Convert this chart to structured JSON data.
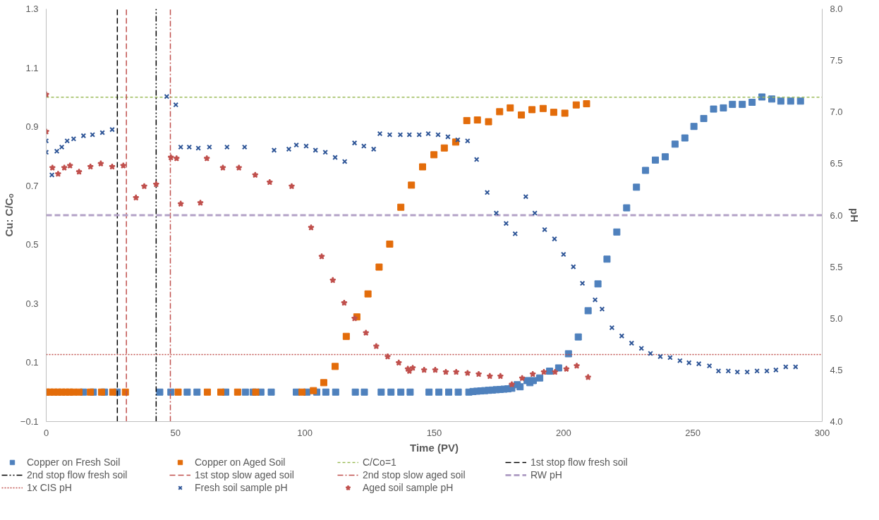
{
  "chart_data": {
    "type": "scatter",
    "xlabel": "Time (PV)",
    "ylabel": "Cu: C/Cₒ",
    "y2label": "pH",
    "xlim": [
      0,
      300
    ],
    "xticks": [
      0,
      50,
      100,
      150,
      200,
      250,
      300
    ],
    "ylim": [
      -0.1,
      1.3
    ],
    "yticks": [
      -0.1,
      0.1,
      0.3,
      0.5,
      0.7,
      0.9,
      1.1,
      1.3
    ],
    "y2lim": [
      4,
      8
    ],
    "y2ticks": [
      {
        "value": 4,
        "label": "4.0"
      },
      {
        "value": 4.5,
        "label": "4.5"
      },
      {
        "value": 5,
        "label": "5.0"
      },
      {
        "value": 5.5,
        "label": "5.5"
      },
      {
        "value": 6,
        "label": "6.0"
      },
      {
        "value": 6.5,
        "label": "6.5"
      },
      {
        "value": 7,
        "label": "7.0"
      },
      {
        "value": 7.5,
        "label": "7.5"
      },
      {
        "value": 8,
        "label": "8.0"
      }
    ],
    "grid": false,
    "legend": "bottom",
    "series": [
      {
        "name": "Copper on Fresh Soil",
        "color": "#4f81bd",
        "marker": "square",
        "x": [
          14.4,
          18.2,
          22.5,
          27.4,
          43.9,
          48.2,
          54.5,
          58.3,
          69.4,
          77,
          80,
          83,
          87,
          96.7,
          100.8,
          104.6,
          108.1,
          111.9,
          119.5,
          123.0,
          129.5,
          133.3,
          137.1,
          140.7,
          148.0,
          151.8,
          155.6,
          159.3,
          163.4,
          165,
          166.5,
          168,
          169.5,
          171,
          172.5,
          174,
          175.5,
          177,
          178.5,
          180,
          182.1,
          183.2,
          185.9,
          187.0,
          188.3,
          190.8,
          194.6,
          198.1,
          201.9,
          205.7,
          209.5,
          213.3,
          216.8,
          220.6,
          224.4,
          228.2,
          231.7,
          235.5,
          239.3,
          243.1,
          246.9,
          250.4,
          254.2,
          258.0,
          261.8,
          265.3,
          269.1,
          272.9,
          276.7,
          280.5,
          284.0,
          287.8,
          291.6
        ],
        "values": [
          0,
          0,
          0,
          0,
          0,
          0,
          0,
          0,
          0,
          0,
          0,
          0,
          0,
          0,
          0,
          0,
          0,
          0,
          0,
          0,
          0,
          0,
          0,
          0,
          0,
          0,
          0,
          0,
          0,
          0.002,
          0.003,
          0.004,
          0.005,
          0.006,
          0.007,
          0.008,
          0.009,
          0.01,
          0.011,
          0.013,
          0.025,
          0.018,
          0.039,
          0.032,
          0.039,
          0.048,
          0.071,
          0.082,
          0.13,
          0.187,
          0.276,
          0.367,
          0.451,
          0.543,
          0.625,
          0.695,
          0.752,
          0.787,
          0.798,
          0.841,
          0.862,
          0.901,
          0.928,
          0.96,
          0.964,
          0.976,
          0.976,
          0.983,
          1.001,
          0.994,
          0.987,
          0.987,
          0.987
        ]
      },
      {
        "name": "Copper on Aged Soil",
        "color": "#e36c0a",
        "marker": "square",
        "x": [
          0,
          1.5,
          3,
          4.5,
          6,
          7.5,
          9,
          10.5,
          12.7,
          17.1,
          21.4,
          25.7,
          30.6,
          51.0,
          62.3,
          67.5,
          74.0,
          81.0,
          98.9,
          103.3,
          107.3,
          111.7,
          116.0,
          120.1,
          124.4,
          128.7,
          132.8,
          137.1,
          141.2,
          145.5,
          149.9,
          153.9,
          158.3,
          162.6,
          166.7,
          171.0,
          175.3,
          179.4,
          183.7,
          187.8,
          192.1,
          196.2,
          200.5,
          204.9,
          208.9
        ],
        "values": [
          0,
          0,
          0,
          0,
          0,
          0,
          0,
          0,
          0,
          0,
          0,
          0,
          0,
          0,
          0,
          0,
          0,
          0,
          0,
          0.005,
          0.032,
          0.087,
          0.189,
          0.255,
          0.333,
          0.424,
          0.502,
          0.627,
          0.702,
          0.764,
          0.805,
          0.828,
          0.848,
          0.921,
          0.923,
          0.917,
          0.951,
          0.964,
          0.94,
          0.958,
          0.962,
          0.949,
          0.946,
          0.974,
          0.978
        ]
      },
      {
        "name": "Fresh soil sample pH",
        "color": "#2e5597",
        "marker": "cross",
        "axis": "y2",
        "x": [
          0,
          0,
          2.2,
          4.1,
          6.0,
          8.1,
          10.6,
          14.4,
          17.9,
          21.7,
          25.5,
          46.6,
          50.1,
          52.0,
          55.3,
          58.8,
          63.1,
          69.9,
          76.7,
          88.1,
          93.8,
          96.7,
          100.5,
          104.1,
          107.9,
          111.7,
          115.4,
          119.2,
          122.8,
          126.6,
          129.0,
          132.8,
          136.9,
          140.4,
          144.2,
          147.7,
          151.5,
          155.3,
          159.1,
          162.9,
          166.4,
          170.5,
          174.0,
          177.8,
          181.3,
          185.4,
          188.9,
          192.7,
          196.5,
          200.0,
          203.8,
          207.3,
          212.2,
          214.9,
          218.7,
          222.5,
          226.3,
          230.1,
          233.6,
          237.4,
          241.2,
          245.0,
          248.5,
          252.3,
          256.4,
          259.9,
          263.7,
          267.2,
          271.0,
          274.8,
          278.6,
          282.1,
          285.9,
          289.7
        ],
        "values": [
          6.72,
          6.61,
          6.39,
          6.62,
          6.66,
          6.72,
          6.74,
          6.77,
          6.78,
          6.8,
          6.83,
          7.15,
          7.07,
          6.66,
          6.66,
          6.65,
          6.66,
          6.66,
          6.66,
          6.63,
          6.64,
          6.68,
          6.67,
          6.63,
          6.61,
          6.56,
          6.52,
          6.7,
          6.67,
          6.64,
          6.79,
          6.78,
          6.78,
          6.78,
          6.78,
          6.79,
          6.78,
          6.76,
          6.73,
          6.72,
          6.54,
          6.22,
          6.02,
          5.92,
          5.82,
          6.18,
          6.02,
          5.86,
          5.77,
          5.62,
          5.5,
          5.34,
          5.18,
          5.09,
          4.91,
          4.83,
          4.76,
          4.71,
          4.66,
          4.63,
          4.62,
          4.59,
          4.57,
          4.56,
          4.54,
          4.49,
          4.49,
          4.48,
          4.48,
          4.49,
          4.49,
          4.5,
          4.53,
          4.53
        ]
      },
      {
        "name": "Aged soil sample pH",
        "color": "#c0504d",
        "marker": "star",
        "axis": "y2",
        "x": [
          0,
          0,
          2.4,
          4.6,
          7.0,
          9.2,
          12.7,
          17.1,
          21.1,
          25.5,
          29.8,
          34.7,
          37.9,
          42.5,
          48.2,
          50.4,
          52.0,
          59.6,
          62.1,
          68.3,
          74.5,
          80.8,
          86.4,
          94.9,
          102.4,
          106.5,
          110.8,
          115.2,
          119.2,
          123.6,
          127.6,
          132.0,
          136.3,
          139.8,
          140.4,
          141.7,
          146.1,
          150.4,
          154.5,
          158.5,
          162.9,
          167.2,
          171.5,
          175.6,
          180.0,
          184.0,
          188.1,
          192.4,
          196.7,
          201.1,
          205.1,
          209.5
        ],
        "values": [
          7.17,
          6.81,
          6.46,
          6.4,
          6.46,
          6.48,
          6.42,
          6.47,
          6.5,
          6.47,
          6.48,
          6.17,
          6.28,
          6.3,
          6.56,
          6.55,
          6.11,
          6.12,
          6.55,
          6.46,
          6.46,
          6.39,
          6.32,
          6.28,
          5.88,
          5.6,
          5.37,
          5.15,
          5.0,
          4.86,
          4.73,
          4.63,
          4.57,
          4.51,
          4.49,
          4.52,
          4.5,
          4.5,
          4.48,
          4.48,
          4.47,
          4.46,
          4.44,
          4.44,
          4.36,
          4.42,
          4.46,
          4.48,
          4.48,
          4.51,
          4.54,
          4.43
        ]
      }
    ],
    "ref_lines": [
      {
        "axis": "y",
        "value": 1.0,
        "label": "C/Co=1",
        "color": "#9bbb59",
        "line_style": "dashed"
      },
      {
        "axis": "x",
        "value": 27.5,
        "label": "1st stop flow fresh soil",
        "color": "#000000",
        "line_style": "longdash"
      },
      {
        "axis": "x",
        "value": 42.5,
        "label": "2nd stop flow fresh soil",
        "color": "#000000",
        "line_style": "dashdotdot"
      },
      {
        "axis": "x",
        "value": 31,
        "label": "1st stop slow aged soil",
        "color": "#c0504d",
        "line_style": "longdash"
      },
      {
        "axis": "x",
        "value": 48,
        "label": "2nd stop slow aged soil",
        "color": "#c0504d",
        "line_style": "dashdot"
      },
      {
        "axis": "y2",
        "value": 6.0,
        "label": "RW pH",
        "color": "#b3a2c7",
        "line_style": "thickdash"
      },
      {
        "axis": "y2",
        "value": 4.65,
        "label": "1x CIS pH",
        "color": "#c0504d",
        "line_style": "dotted"
      }
    ]
  }
}
